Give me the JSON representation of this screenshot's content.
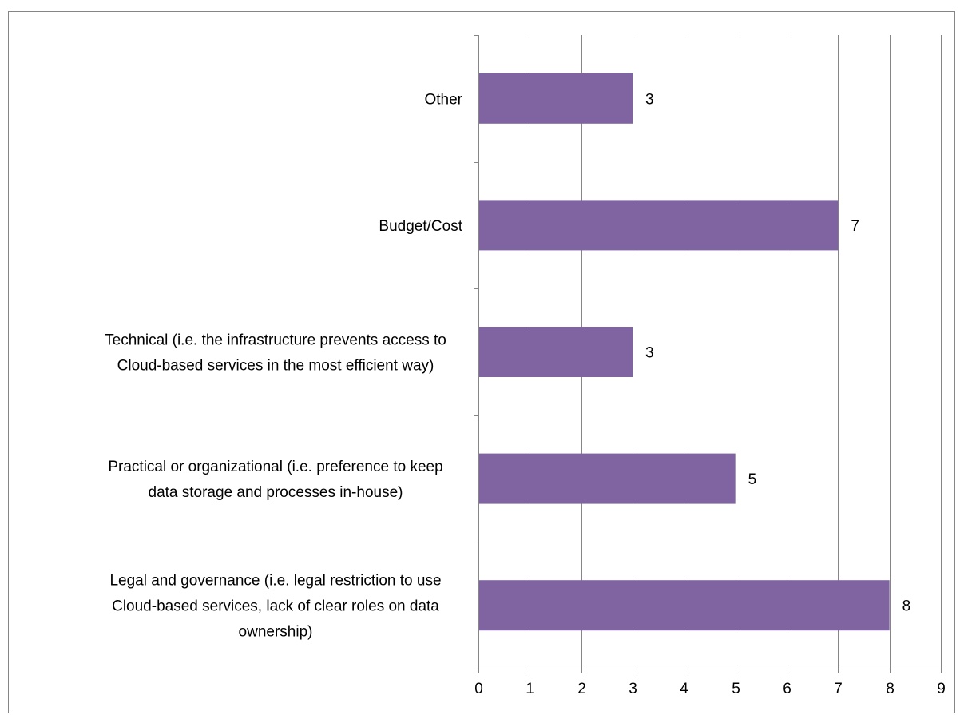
{
  "chart_data": {
    "type": "bar",
    "orientation": "horizontal",
    "categories": [
      "Other",
      "Budget/Cost",
      "Technical (i.e. the infrastructure prevents access to Cloud-based services in the most efficient way)",
      "Practical or organizational (i.e. preference to keep data storage and processes in-house)",
      "Legal and governance (i.e. legal restriction to use Cloud-based services, lack of clear roles on data ownership)"
    ],
    "category_lines": [
      [
        "Other"
      ],
      [
        "Budget/Cost"
      ],
      [
        "Technical (i.e. the infrastructure prevents access to",
        "Cloud-based services in the most efficient way)"
      ],
      [
        "Practical or organizational (i.e. preference to keep",
        "data storage and processes in-house)"
      ],
      [
        "Legal and governance (i.e. legal restriction to use",
        "Cloud-based services, lack of clear roles on data",
        "ownership)"
      ]
    ],
    "values": [
      3,
      7,
      3,
      5,
      8
    ],
    "data_labels": [
      "3",
      "7",
      "3",
      "5",
      "8"
    ],
    "xlim": [
      0,
      9
    ],
    "x_ticks": [
      "0",
      "1",
      "2",
      "3",
      "4",
      "5",
      "6",
      "7",
      "8",
      "9"
    ],
    "title": "",
    "xlabel": "",
    "ylabel": "",
    "grid": "vertical",
    "legend": "none",
    "bar_color": "#8064a2",
    "grid_color": "#868686"
  }
}
